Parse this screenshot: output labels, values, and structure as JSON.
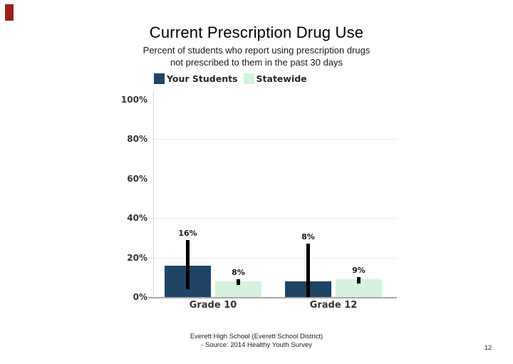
{
  "slide": {
    "title": "Current Prescription Drug Use",
    "subtitle_line1": "Percent of students who report using prescription drugs",
    "subtitle_line2": "not prescribed to them in the past 30 days",
    "footer_line1": "Everett High School (Everett School District)",
    "footer_line2": "- Source: 2014 Healthy Youth Survey",
    "page_number": "12",
    "accent_color": "#9b2020"
  },
  "chart_data": {
    "type": "bar",
    "title": "Current Prescription Drug Use",
    "subtitle": "Percent of students who report using prescription drugs not prescribed to them in the past 30 days",
    "categories": [
      "Grade 10",
      "Grade 12"
    ],
    "series": [
      {
        "name": "Your Students",
        "color": "#1f4465",
        "values": [
          16,
          8
        ],
        "labels": [
          "16%",
          "8%"
        ],
        "error_bars": [
          [
            4,
            29
          ],
          [
            0,
            27
          ]
        ]
      },
      {
        "name": "Statewide",
        "color": "#d6f2de",
        "values": [
          8,
          9
        ],
        "labels": [
          "8%",
          "9%"
        ],
        "error_bars": [
          [
            6,
            9
          ],
          [
            7,
            10
          ]
        ]
      }
    ],
    "ylabel": "",
    "xlabel": "",
    "ylim": [
      0,
      100
    ],
    "yticks": [
      0,
      20,
      40,
      60,
      80,
      100
    ],
    "ytick_labels": [
      "0%",
      "20%",
      "40%",
      "60%",
      "80%",
      "100%"
    ],
    "gridlines_at": [
      20,
      40,
      80
    ],
    "grid_style": "dotted",
    "legend_position": "top-left",
    "error_bar_color": "#000000"
  }
}
